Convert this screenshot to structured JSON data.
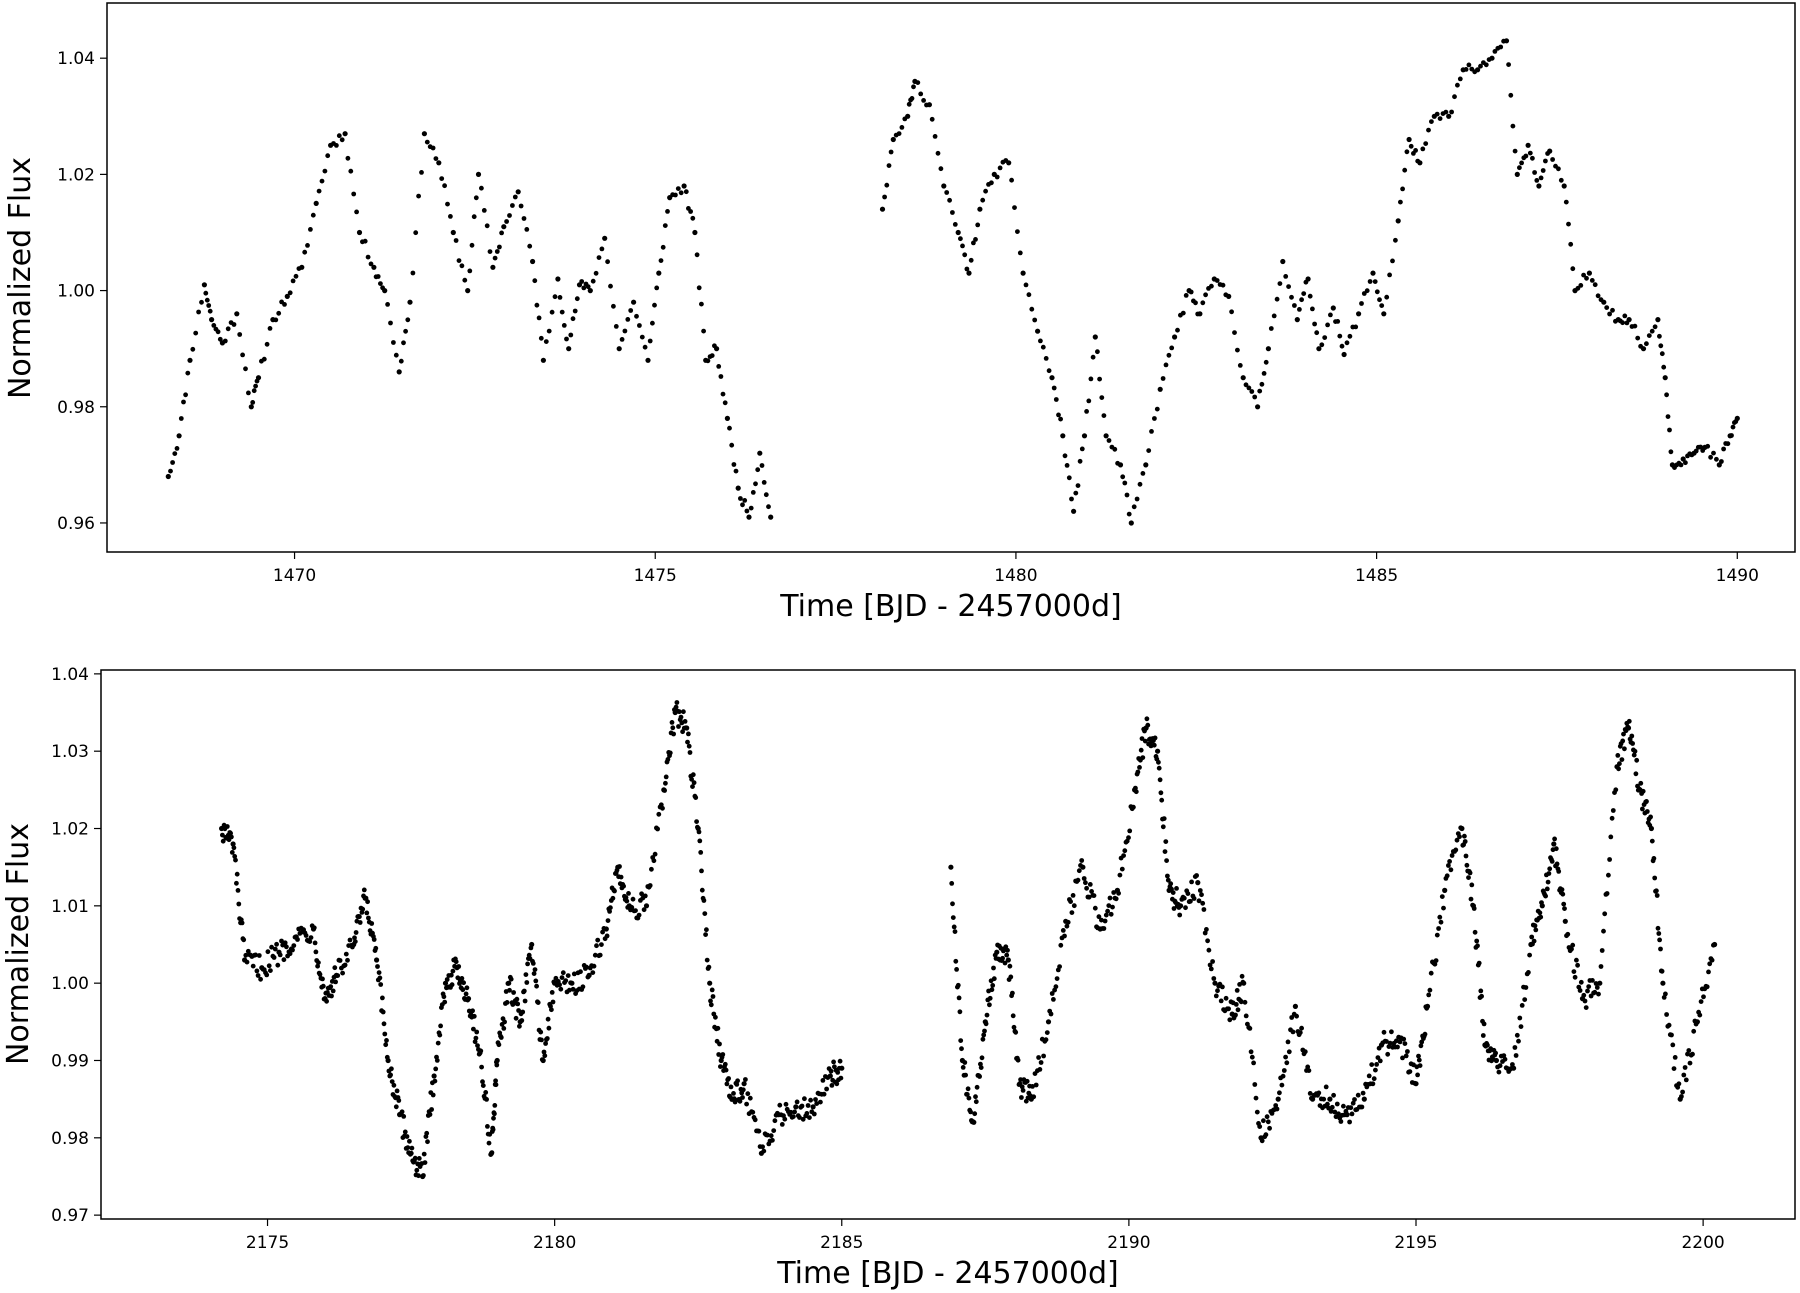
{
  "chart_data": [
    {
      "type": "scatter",
      "xlabel": "Time [BJD - 2457000d]",
      "ylabel": "Normalized Flux",
      "xlim": [
        1467.4,
        1490.8
      ],
      "ylim": [
        0.955,
        1.0495
      ],
      "xticks": [
        1470,
        1475,
        1480,
        1485,
        1490
      ],
      "xtick_labels": [
        "1470",
        "1475",
        "1480",
        "1485",
        "1490"
      ],
      "yticks": [
        0.96,
        0.98,
        1.0,
        1.02,
        1.04
      ],
      "ytick_labels": [
        "0.96",
        "0.98",
        "1.00",
        "1.02",
        "1.04"
      ],
      "grid": false,
      "marker_color": "#000000",
      "series": [
        {
          "x": [
            1468.25,
            1468.4,
            1468.55,
            1468.75,
            1468.85,
            1469.0,
            1469.2,
            1469.4,
            1469.5,
            1469.7,
            1469.9,
            1470.1,
            1470.3,
            1470.5,
            1470.7,
            1470.9,
            1471.1,
            1471.25,
            1471.45,
            1471.6,
            1471.8,
            1472.0,
            1472.2,
            1472.4,
            1472.55,
            1472.75,
            1472.9,
            1473.1,
            1473.3,
            1473.45,
            1473.65,
            1473.8,
            1473.95,
            1474.1,
            1474.3,
            1474.5,
            1474.7,
            1474.9,
            1475.05,
            1475.2,
            1475.4,
            1475.55,
            1475.7,
            1475.85,
            1476.0,
            1476.15,
            1476.3,
            1476.45,
            1476.6
          ],
          "y": [
            0.968,
            0.975,
            0.988,
            1.001,
            0.995,
            0.991,
            0.996,
            0.98,
            0.985,
            0.995,
            0.999,
            1.004,
            1.015,
            1.025,
            1.027,
            1.01,
            1.004,
            1.0,
            0.986,
            0.998,
            1.027,
            1.022,
            1.01,
            1.0,
            1.02,
            1.004,
            1.011,
            1.017,
            1.005,
            0.988,
            1.002,
            0.99,
            1.001,
            1.0,
            1.009,
            0.99,
            0.998,
            0.988,
            1.003,
            1.016,
            1.018,
            1.01,
            0.988,
            0.99,
            0.978,
            0.966,
            0.961,
            0.972,
            0.961
          ]
        },
        {
          "x": [
            1478.15,
            1478.3,
            1478.5,
            1478.6,
            1478.8,
            1479.0,
            1479.2,
            1479.35,
            1479.5,
            1479.7,
            1479.9,
            1480.1,
            1480.3,
            1480.5,
            1480.65,
            1480.8,
            1480.95,
            1481.1,
            1481.25,
            1481.45,
            1481.6,
            1481.8,
            1482.0,
            1482.2,
            1482.4,
            1482.55,
            1482.75,
            1482.95,
            1483.15,
            1483.35,
            1483.5,
            1483.7,
            1483.9,
            1484.05,
            1484.2,
            1484.4,
            1484.55,
            1484.75,
            1484.95,
            1485.1,
            1485.3,
            1485.45,
            1485.6,
            1485.8,
            1486.0,
            1486.2,
            1486.4,
            1486.6,
            1486.8,
            1486.95,
            1487.1,
            1487.25,
            1487.4,
            1487.6,
            1487.75,
            1487.95,
            1488.15,
            1488.35,
            1488.5,
            1488.7,
            1488.9,
            1489.0,
            1489.1,
            1489.25,
            1489.4,
            1489.55,
            1489.75,
            1489.9,
            1490.0
          ],
          "y": [
            1.014,
            1.026,
            1.03,
            1.036,
            1.032,
            1.018,
            1.01,
            1.003,
            1.014,
            1.02,
            1.022,
            1.003,
            0.993,
            0.985,
            0.975,
            0.962,
            0.975,
            0.992,
            0.975,
            0.97,
            0.96,
            0.97,
            0.983,
            0.992,
            1.0,
            0.996,
            1.002,
            0.999,
            0.985,
            0.98,
            0.99,
            1.005,
            0.995,
            1.002,
            0.99,
            0.997,
            0.989,
            0.996,
            1.003,
            0.996,
            1.012,
            1.026,
            1.022,
            1.03,
            1.03,
            1.038,
            1.038,
            1.04,
            1.043,
            1.02,
            1.025,
            1.018,
            1.024,
            1.018,
            1.0,
            1.003,
            0.998,
            0.995,
            0.995,
            0.99,
            0.995,
            0.985,
            0.97,
            0.971,
            0.972,
            0.973,
            0.97,
            0.975,
            0.978
          ]
        }
      ]
    },
    {
      "type": "scatter",
      "xlabel": "Time [BJD - 2457000d]",
      "ylabel": "Normalized Flux",
      "xlim": [
        2172.1,
        2201.6
      ],
      "ylim": [
        0.9695,
        1.0405
      ],
      "xticks": [
        2175,
        2180,
        2185,
        2190,
        2195,
        2200
      ],
      "xtick_labels": [
        "2175",
        "2180",
        "2185",
        "2190",
        "2195",
        "2200"
      ],
      "yticks": [
        0.97,
        0.98,
        0.99,
        1.0,
        1.01,
        1.02,
        1.03,
        1.04
      ],
      "ytick_labels": [
        "0.97",
        "0.98",
        "0.99",
        "1.00",
        "1.01",
        "1.02",
        "1.03",
        "1.04"
      ],
      "grid": false,
      "marker_color": "#000000",
      "series": [
        {
          "x": [
            2174.2,
            2174.4,
            2174.6,
            2174.9,
            2175.2,
            2175.5,
            2175.8,
            2176.0,
            2176.2,
            2176.5,
            2176.7,
            2176.9,
            2177.1,
            2177.3,
            2177.5,
            2177.7,
            2177.9,
            2178.1,
            2178.3,
            2178.5,
            2178.7,
            2178.9,
            2179.0,
            2179.2,
            2179.4,
            2179.6,
            2179.8,
            2180.0,
            2180.3,
            2180.6,
            2180.9,
            2181.1,
            2181.3,
            2181.6,
            2181.9,
            2182.1,
            2182.3,
            2182.5,
            2182.7,
            2182.9,
            2183.1,
            2183.3,
            2183.6,
            2183.9,
            2184.2,
            2184.5,
            2184.8,
            2185.0
          ],
          "y": [
            1.02,
            1.018,
            1.003,
            1.002,
            1.004,
            1.006,
            1.007,
            0.998,
            1.001,
            1.005,
            1.011,
            1.003,
            0.99,
            0.983,
            0.978,
            0.975,
            0.988,
            1.0,
            1.002,
            0.998,
            0.991,
            0.978,
            0.99,
            1.0,
            0.995,
            1.005,
            0.99,
            1.0,
            1.0,
            1.001,
            1.007,
            1.015,
            1.01,
            1.01,
            1.025,
            1.035,
            1.033,
            1.02,
            1.0,
            0.99,
            0.985,
            0.987,
            0.978,
            0.983,
            0.984,
            0.984,
            0.988,
            0.989
          ]
        },
        {
          "x": [
            2186.9,
            2187.1,
            2187.3,
            2187.5,
            2187.7,
            2187.9,
            2188.1,
            2188.3,
            2188.6,
            2188.9,
            2189.2,
            2189.5,
            2189.8,
            2190.1,
            2190.3,
            2190.5,
            2190.7,
            2190.9,
            2191.2,
            2191.5,
            2191.8,
            2192.0,
            2192.3,
            2192.6,
            2192.9,
            2193.2,
            2193.5,
            2193.8,
            2194.1,
            2194.4,
            2194.7,
            2195.0,
            2195.2,
            2195.5,
            2195.8,
            2196.0,
            2196.2,
            2196.4,
            2196.7,
            2197.0,
            2197.2,
            2197.4,
            2197.6,
            2197.9,
            2198.2,
            2198.5,
            2198.7,
            2198.9,
            2199.1,
            2199.3,
            2199.6,
            2199.9,
            2200.2
          ],
          "y": [
            1.015,
            0.99,
            0.982,
            0.995,
            1.004,
            1.003,
            0.987,
            0.985,
            0.995,
            1.008,
            1.015,
            1.007,
            1.012,
            1.025,
            1.033,
            1.03,
            1.012,
            1.01,
            1.013,
            1.0,
            0.996,
            1.0,
            0.98,
            0.985,
            0.997,
            0.985,
            0.985,
            0.983,
            0.985,
            0.992,
            0.993,
            0.987,
            0.997,
            1.012,
            1.02,
            1.01,
            0.992,
            0.99,
            0.989,
            1.005,
            1.01,
            1.018,
            1.008,
            0.998,
            1.0,
            1.028,
            1.033,
            1.025,
            1.02,
            1.0,
            0.985,
            0.995,
            1.005
          ]
        }
      ]
    }
  ]
}
